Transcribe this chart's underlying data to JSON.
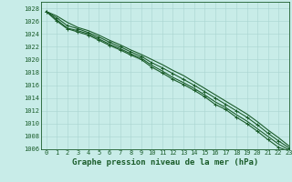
{
  "title": "Graphe pression niveau de la mer (hPa)",
  "background_color": "#c8ece8",
  "grid_color": "#a8d4d0",
  "line_color": "#1a5c2a",
  "spine_color": "#1a5c2a",
  "xlim": [
    -0.5,
    23
  ],
  "ylim": [
    1006,
    1029
  ],
  "yticks": [
    1006,
    1008,
    1010,
    1012,
    1014,
    1016,
    1018,
    1020,
    1022,
    1024,
    1026,
    1028
  ],
  "xticks": [
    0,
    1,
    2,
    3,
    4,
    5,
    6,
    7,
    8,
    9,
    10,
    11,
    12,
    13,
    14,
    15,
    16,
    17,
    18,
    19,
    20,
    21,
    22,
    23
  ],
  "series": [
    [
      1027.5,
      1026.8,
      1025.8,
      1025.0,
      1024.5,
      1023.8,
      1023.0,
      1022.3,
      1021.5,
      1020.8,
      1020.0,
      1019.2,
      1018.3,
      1017.5,
      1016.5,
      1015.5,
      1014.5,
      1013.5,
      1012.5,
      1011.5,
      1010.3,
      1009.0,
      1007.8,
      1006.5
    ],
    [
      1027.5,
      1026.5,
      1025.3,
      1024.8,
      1024.2,
      1023.5,
      1022.7,
      1022.0,
      1021.2,
      1020.5,
      1019.5,
      1018.7,
      1017.8,
      1016.9,
      1016.0,
      1015.0,
      1014.0,
      1013.0,
      1012.0,
      1011.0,
      1009.8,
      1008.5,
      1007.3,
      1006.2
    ],
    [
      1027.5,
      1026.2,
      1024.9,
      1024.5,
      1024.0,
      1023.2,
      1022.4,
      1021.7,
      1020.9,
      1020.2,
      1019.1,
      1018.2,
      1017.2,
      1016.4,
      1015.5,
      1014.5,
      1013.4,
      1012.5,
      1011.4,
      1010.4,
      1009.2,
      1008.0,
      1006.8,
      1005.9
    ],
    [
      1027.5,
      1026.0,
      1024.8,
      1024.3,
      1023.8,
      1023.0,
      1022.2,
      1021.5,
      1020.7,
      1020.0,
      1018.8,
      1017.9,
      1016.9,
      1016.1,
      1015.2,
      1014.2,
      1013.0,
      1012.2,
      1011.0,
      1010.0,
      1008.8,
      1007.5,
      1006.3,
      1005.7
    ]
  ],
  "marker_series": [
    1,
    3
  ],
  "title_fontsize": 6.5,
  "tick_fontsize": 5.0
}
